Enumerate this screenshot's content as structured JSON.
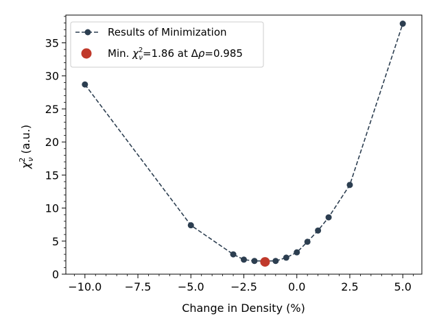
{
  "chart_data": {
    "type": "line",
    "title": "",
    "xlabel": "Change in Density (%)",
    "ylabel_main": "χ",
    "ylabel_sup": "2",
    "ylabel_sub": "ν",
    "ylabel_suffix": " (a.u.)",
    "xlim": [
      -10.9,
      5.9
    ],
    "ylim": [
      0,
      39.2
    ],
    "x_ticks": [
      -10.0,
      -7.5,
      -5.0,
      -2.5,
      0.0,
      2.5,
      5.0
    ],
    "x_tick_labels": [
      "−10.0",
      "−7.5",
      "−5.0",
      "−2.5",
      "0.0",
      "2.5",
      "5.0"
    ],
    "y_ticks": [
      0,
      5,
      10,
      15,
      20,
      25,
      30,
      35
    ],
    "y_tick_labels": [
      "0",
      "5",
      "10",
      "15",
      "20",
      "25",
      "30",
      "35"
    ],
    "grid": false,
    "legend_position": "top-left",
    "series": [
      {
        "name": "Results of Minimization",
        "color": "#2c3e50",
        "style": "dashed-line-with-markers",
        "x": [
          -10.0,
          -5.0,
          -3.0,
          -2.5,
          -2.0,
          -1.0,
          -0.5,
          0.0,
          0.5,
          1.0,
          1.5,
          2.5,
          5.0
        ],
        "y": [
          28.7,
          7.4,
          3.0,
          2.2,
          2.0,
          2.0,
          2.5,
          3.3,
          4.9,
          6.6,
          8.6,
          13.5,
          37.9
        ]
      }
    ],
    "minimum": {
      "x": -1.5,
      "y": 1.86,
      "color": "#c0392b",
      "legend_prefix": "Min. ",
      "legend_sym": "χ",
      "legend_sup": "2",
      "legend_sub": "ν",
      "legend_mid": "=1.86 at Δ",
      "legend_rho": "ρ",
      "legend_tail": "=0.985"
    }
  }
}
